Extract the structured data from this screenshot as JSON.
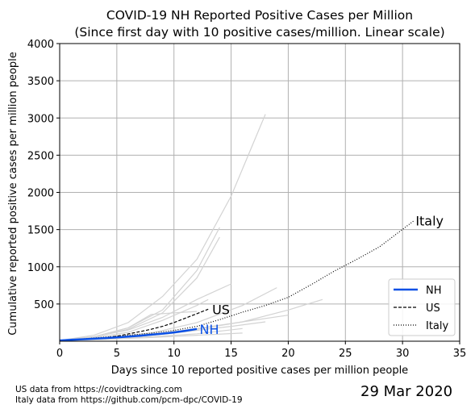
{
  "chart_data": {
    "type": "line",
    "title": "COVID-19 NH Reported Positive Cases per Million",
    "subtitle": "(Since first day with 10 positive cases/million. Linear scale)",
    "xlabel": "Days since 10 reported positive cases per million people",
    "ylabel": "Cumulative reported positive cases per million people",
    "xlim": [
      0,
      35
    ],
    "ylim": [
      0,
      4000
    ],
    "xticks": [
      0,
      5,
      10,
      15,
      20,
      25,
      30,
      35
    ],
    "yticks": [
      500,
      1000,
      1500,
      2000,
      2500,
      3000,
      3500,
      4000
    ],
    "grid": true,
    "legend_position": "lower-right",
    "series": [
      {
        "name": "NH",
        "color": "#0a50e6",
        "style": "solid",
        "x": [
          0,
          1,
          2,
          3,
          4,
          5,
          6,
          7,
          8,
          9,
          10,
          11,
          12
        ],
        "y": [
          10,
          18,
          26,
          34,
          42,
          52,
          62,
          74,
          88,
          102,
          118,
          140,
          165
        ]
      },
      {
        "name": "US",
        "color": "#000000",
        "style": "dashed",
        "x": [
          0,
          1,
          2,
          3,
          4,
          5,
          6,
          7,
          8,
          9,
          10,
          11,
          12,
          13
        ],
        "y": [
          10,
          16,
          24,
          34,
          48,
          68,
          98,
          128,
          160,
          200,
          250,
          310,
          370,
          430
        ]
      },
      {
        "name": "Italy",
        "color": "#000000",
        "style": "dotted",
        "x": [
          0,
          2,
          4,
          6,
          8,
          10,
          12,
          14,
          16,
          18,
          20,
          22,
          24,
          26,
          28,
          31
        ],
        "y": [
          10,
          30,
          55,
          80,
          110,
          145,
          200,
          290,
          390,
          480,
          590,
          760,
          940,
          1100,
          1270,
          1620
        ]
      }
    ],
    "background_series": [
      {
        "x": [
          0,
          3,
          6,
          9,
          12,
          15,
          18
        ],
        "y": [
          10,
          80,
          250,
          600,
          1100,
          1950,
          3050
        ]
      },
      {
        "x": [
          0,
          3,
          6,
          9,
          12,
          14
        ],
        "y": [
          10,
          60,
          180,
          420,
          950,
          1530
        ]
      },
      {
        "x": [
          0,
          3,
          6,
          9,
          12,
          14
        ],
        "y": [
          10,
          55,
          160,
          380,
          850,
          1400
        ]
      },
      {
        "x": [
          0,
          3,
          6,
          9,
          12,
          15
        ],
        "y": [
          10,
          60,
          150,
          320,
          560,
          770
        ]
      },
      {
        "x": [
          0,
          3,
          6,
          9,
          12,
          13
        ],
        "y": [
          10,
          45,
          120,
          280,
          480,
          560
        ]
      },
      {
        "x": [
          0,
          3,
          6,
          8,
          10,
          12
        ],
        "y": [
          10,
          60,
          180,
          360,
          380,
          400
        ]
      },
      {
        "x": [
          0,
          4,
          8,
          12,
          16,
          19
        ],
        "y": [
          10,
          40,
          110,
          250,
          480,
          720
        ]
      },
      {
        "x": [
          0,
          4,
          8,
          12,
          16,
          20,
          23
        ],
        "y": [
          10,
          30,
          80,
          160,
          260,
          420,
          560
        ]
      },
      {
        "x": [
          0,
          4,
          8,
          12,
          16,
          20
        ],
        "y": [
          10,
          35,
          90,
          170,
          260,
          350
        ]
      },
      {
        "x": [
          0,
          4,
          8,
          12,
          16
        ],
        "y": [
          10,
          30,
          60,
          100,
          170
        ]
      },
      {
        "x": [
          0,
          4,
          8,
          12,
          16
        ],
        "y": [
          10,
          25,
          50,
          80,
          110
        ]
      },
      {
        "x": [
          0,
          5,
          10,
          15,
          18
        ],
        "y": [
          10,
          40,
          110,
          200,
          260
        ]
      },
      {
        "x": [
          0,
          3,
          6,
          9,
          11
        ],
        "y": [
          10,
          25,
          55,
          100,
          130
        ]
      },
      {
        "x": [
          0,
          4,
          8,
          10
        ],
        "y": [
          10,
          35,
          80,
          110
        ]
      }
    ],
    "annotations": [
      {
        "text": "US",
        "x": 13.2,
        "y": 430,
        "color": "#000000"
      },
      {
        "text": "NH",
        "x": 12.1,
        "y": 165,
        "color": "#0a50e6"
      },
      {
        "text": "Italy",
        "x": 31.0,
        "y": 1620,
        "color": "#000000"
      }
    ]
  },
  "footnotes": [
    "US data from https://covidtracking.com",
    "Italy data from https://github.com/pcm-dpc/COVID-19"
  ],
  "date_label": "29 Mar 2020",
  "colors": {
    "grid": "#b0b0b0",
    "background_series": "#d3d3d3"
  }
}
